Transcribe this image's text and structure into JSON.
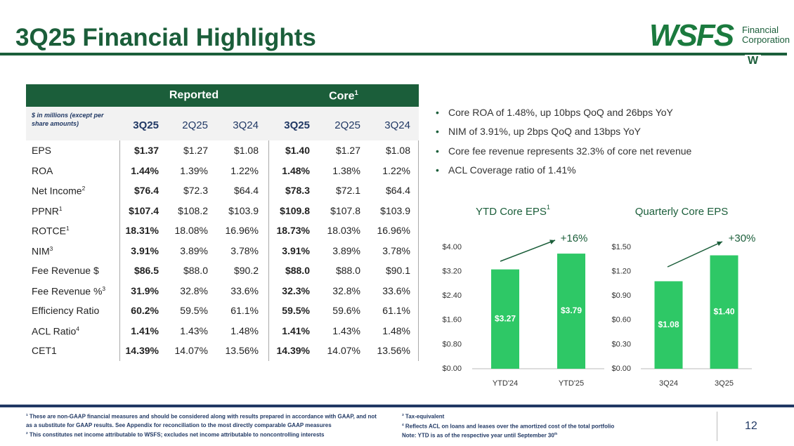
{
  "header": {
    "title": "3Q25 Financial Highlights",
    "logo": {
      "mark": "WSFS",
      "line1": "Financial",
      "line2": "Corporation",
      "sub": "W"
    }
  },
  "table": {
    "groups": [
      {
        "label": "Reported"
      },
      {
        "label": "Core",
        "sup": "1"
      }
    ],
    "units": "$ in millions (except per share amounts)",
    "columns": [
      "3Q25",
      "2Q25",
      "3Q24",
      "3Q25",
      "2Q25",
      "3Q24"
    ],
    "rows": [
      {
        "label": "EPS",
        "values": [
          "$1.37",
          "$1.27",
          "$1.08",
          "$1.40",
          "$1.27",
          "$1.08"
        ]
      },
      {
        "label": "ROA",
        "values": [
          "1.44%",
          "1.39%",
          "1.22%",
          "1.48%",
          "1.38%",
          "1.22%"
        ]
      },
      {
        "label": "Net Income",
        "sup": "2",
        "values": [
          "$76.4",
          "$72.3",
          "$64.4",
          "$78.3",
          "$72.1",
          "$64.4"
        ]
      },
      {
        "label": "PPNR",
        "sup": "1",
        "values": [
          "$107.4",
          "$108.2",
          "$103.9",
          "$109.8",
          "$107.8",
          "$103.9"
        ]
      },
      {
        "label": "ROTCE",
        "sup": "1",
        "values": [
          "18.31%",
          "18.08%",
          "16.96%",
          "18.73%",
          "18.03%",
          "16.96%"
        ]
      },
      {
        "label": "NIM",
        "sup": "3",
        "values": [
          "3.91%",
          "3.89%",
          "3.78%",
          "3.91%",
          "3.89%",
          "3.78%"
        ]
      },
      {
        "label": "Fee Revenue $",
        "values": [
          "$86.5",
          "$88.0",
          "$90.2",
          "$88.0",
          "$88.0",
          "$90.1"
        ]
      },
      {
        "label": "Fee Revenue %",
        "sup": "3",
        "values": [
          "31.9%",
          "32.8%",
          "33.6%",
          "32.3%",
          "32.8%",
          "33.6%"
        ]
      },
      {
        "label": "Efficiency Ratio",
        "values": [
          "60.2%",
          "59.5%",
          "61.1%",
          "59.5%",
          "59.6%",
          "61.1%"
        ]
      },
      {
        "label": "ACL Ratio",
        "sup": "4",
        "values": [
          "1.41%",
          "1.43%",
          "1.48%",
          "1.41%",
          "1.43%",
          "1.48%"
        ]
      },
      {
        "label": "CET1",
        "values": [
          "14.39%",
          "14.07%",
          "13.56%",
          "14.39%",
          "14.07%",
          "13.56%"
        ]
      }
    ]
  },
  "bullets": [
    "Core ROA of 1.48%, up 10bps QoQ and 26bps YoY",
    "NIM of 3.91%, up 2bps QoQ and 13bps YoY",
    "Core fee revenue represents 32.3% of core net revenue",
    "ACL Coverage ratio of 1.41%"
  ],
  "chart_data": [
    {
      "type": "bar",
      "title": "YTD Core EPS",
      "title_sup": "1",
      "categories": [
        "YTD'24",
        "YTD'25"
      ],
      "values": [
        3.27,
        3.79
      ],
      "value_labels": [
        "$3.27",
        "$3.79"
      ],
      "color": "#2ec866",
      "ylim": [
        0,
        4
      ],
      "yticks": [
        {
          "value": 0,
          "label": "$0.00"
        },
        {
          "value": 0.8,
          "label": "$0.80"
        },
        {
          "value": 1.6,
          "label": "$1.60"
        },
        {
          "value": 2.4,
          "label": "$2.40"
        },
        {
          "value": 3.2,
          "label": "$3.20"
        },
        {
          "value": 4,
          "label": "$4.00"
        }
      ],
      "grid": false,
      "annotation": "+16%"
    },
    {
      "type": "bar",
      "title": "Quarterly Core EPS",
      "categories": [
        "3Q24",
        "3Q25"
      ],
      "values": [
        1.08,
        1.4
      ],
      "value_labels": [
        "$1.08",
        "$1.40"
      ],
      "color": "#2ec866",
      "ylim": [
        0,
        1.5
      ],
      "yticks": [
        {
          "value": 0,
          "label": "$0.00"
        },
        {
          "value": 0.3,
          "label": "$0.30"
        },
        {
          "value": 0.6,
          "label": "$0.60"
        },
        {
          "value": 0.9,
          "label": "$0.90"
        },
        {
          "value": 1.2,
          "label": "$1.20"
        },
        {
          "value": 1.5,
          "label": "$1.50"
        }
      ],
      "grid": false,
      "annotation": "+30%"
    }
  ],
  "footnotes": {
    "left": [
      {
        "mark": "1",
        "text": "These are non-GAAP financial measures and should be considered along with results prepared in accordance with GAAP, and not as a substitute for GAAP results. See Appendix for reconciliation to the most directly comparable GAAP measures"
      },
      {
        "mark": "2",
        "text": "This constitutes net income attributable to WSFS; excludes net income attributable to noncontrolling interests"
      }
    ],
    "right": [
      {
        "mark": "3",
        "text": "Tax-equivalent"
      },
      {
        "mark": "4",
        "text": "Reflects ACL on loans and leases over the amortized cost of the total portfolio"
      }
    ],
    "note": "Note: YTD is as of the respective year until September 30",
    "note_sup": "th"
  },
  "page_number": "12"
}
